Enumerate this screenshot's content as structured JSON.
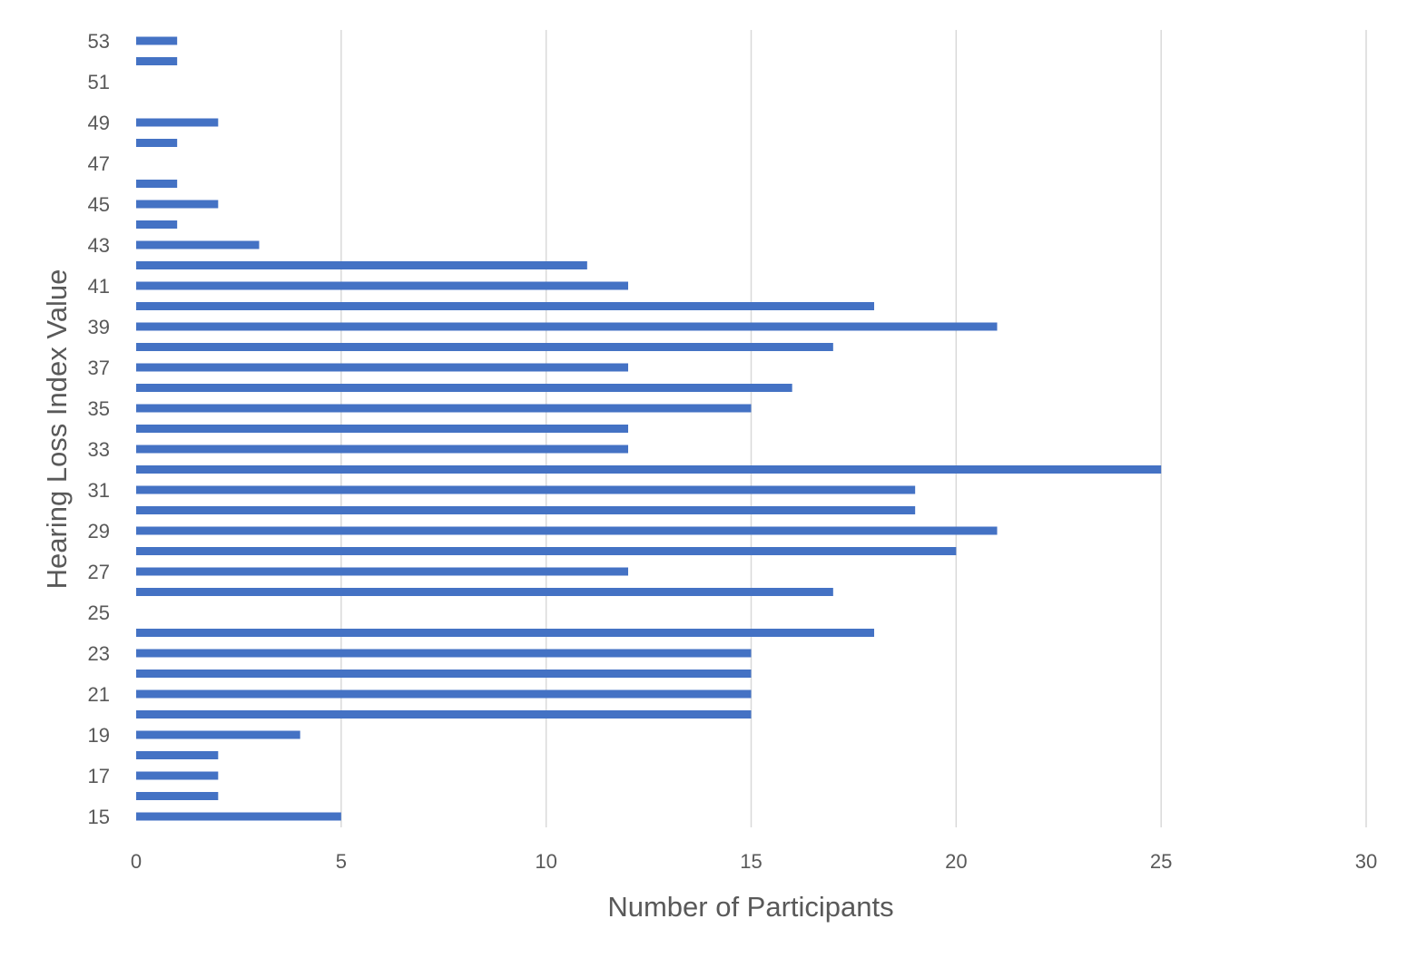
{
  "chart_data": {
    "type": "bar",
    "orientation": "horizontal",
    "title": "",
    "xlabel": "Number of Participants",
    "ylabel": "Hearing Loss Index Value",
    "xlim": [
      0,
      30
    ],
    "x_ticks": [
      0,
      5,
      10,
      15,
      20,
      25,
      30
    ],
    "y_tick_labels": [
      15,
      17,
      19,
      21,
      23,
      25,
      27,
      29,
      31,
      33,
      35,
      37,
      39,
      41,
      43,
      45,
      47,
      49,
      51,
      53
    ],
    "grid": "vertical",
    "legend": "none",
    "bar_color": "#4472C4",
    "grid_color": "#D9D9D9",
    "text_color": "#595959",
    "categories": [
      15,
      16,
      17,
      18,
      19,
      20,
      21,
      22,
      23,
      24,
      25,
      26,
      27,
      28,
      29,
      30,
      31,
      32,
      33,
      34,
      35,
      36,
      37,
      38,
      39,
      40,
      41,
      42,
      43,
      44,
      45,
      46,
      47,
      48,
      49,
      50,
      51,
      52,
      53
    ],
    "values": [
      5,
      2,
      2,
      2,
      4,
      15,
      15,
      15,
      15,
      18,
      0,
      17,
      12,
      20,
      21,
      19,
      19,
      25,
      12,
      12,
      15,
      16,
      12,
      17,
      21,
      18,
      12,
      11,
      3,
      1,
      2,
      1,
      0,
      1,
      2,
      0,
      0,
      1,
      1
    ]
  }
}
